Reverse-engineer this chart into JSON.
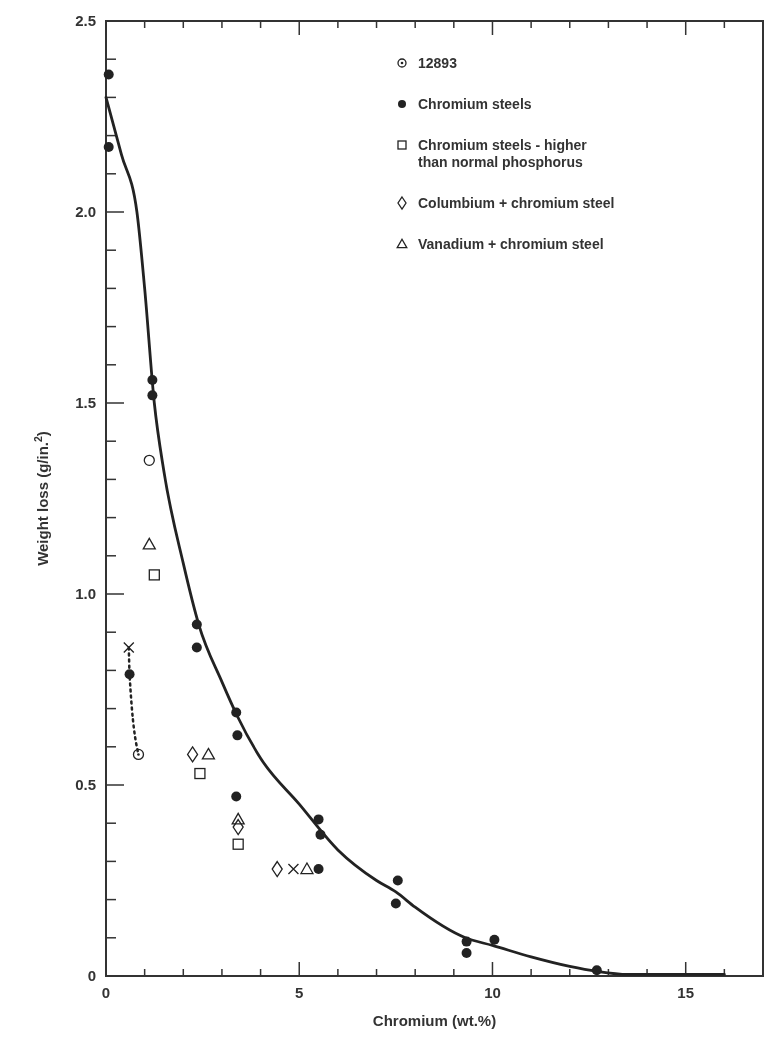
{
  "chart_data": {
    "type": "scatter",
    "xlabel": "Chromium (wt.%)",
    "ylabel": "Weight loss (g/in.$^{2}$)",
    "xlim": [
      0,
      17
    ],
    "ylim": [
      0,
      2.5
    ],
    "xticks": [
      0,
      {
        "value": 1,
        "label": null
      },
      {
        "value": 2,
        "label": null
      },
      {
        "value": 3,
        "label": null
      },
      {
        "value": 4,
        "label": null
      },
      5,
      {
        "value": 6,
        "label": null
      },
      {
        "value": 7,
        "label": null
      },
      {
        "value": 8,
        "label": null
      },
      {
        "value": 9,
        "label": null
      },
      10,
      {
        "value": 11,
        "label": null
      },
      {
        "value": 12,
        "label": null
      },
      {
        "value": 13,
        "label": null
      },
      {
        "value": 14,
        "label": null
      },
      15,
      {
        "value": 16,
        "label": null
      }
    ],
    "yticks": [
      {
        "value": 0,
        "label": "0"
      },
      {
        "value": 0.1,
        "label": null
      },
      {
        "value": 0.2,
        "label": null
      },
      {
        "value": 0.3,
        "label": null
      },
      {
        "value": 0.4,
        "label": null
      },
      0.5,
      {
        "value": 0.6,
        "label": null
      },
      {
        "value": 0.7,
        "label": null
      },
      {
        "value": 0.8,
        "label": null
      },
      {
        "value": 0.9,
        "label": null
      },
      {
        "value": 1,
        "label": "1.0"
      },
      {
        "value": 1.1,
        "label": null
      },
      {
        "value": 1.2,
        "label": null
      },
      {
        "value": 1.3,
        "label": null
      },
      {
        "value": 1.4,
        "label": null
      },
      1.5,
      {
        "value": 1.6,
        "label": null
      },
      {
        "value": 1.7,
        "label": null
      },
      {
        "value": 1.8,
        "label": null
      },
      {
        "value": 1.9,
        "label": null
      },
      {
        "value": 2,
        "label": "2.0"
      },
      {
        "value": 2.1,
        "label": null
      },
      {
        "value": 2.2,
        "label": null
      },
      {
        "value": 2.3,
        "label": null
      },
      {
        "value": 2.4,
        "label": null
      },
      2.5
    ],
    "grid": false,
    "legend": "top right",
    "series": [
      {
        "type": "line",
        "color": "#222222",
        "marker": "none",
        "line_style": "solid",
        "x": [
          0,
          0.4,
          0.8,
          1.0,
          1.25,
          1.5,
          2,
          2.4,
          3,
          3.4,
          4,
          5,
          6,
          7,
          7.5,
          8,
          9.3,
          10,
          11,
          12,
          12.7,
          13.5,
          16
        ],
        "values": [
          2.3,
          2.15,
          2.0,
          1.8,
          1.5,
          1.32,
          1.08,
          0.92,
          0.77,
          0.68,
          0.57,
          0.45,
          0.33,
          0.25,
          0.22,
          0.18,
          0.1,
          0.08,
          0.05,
          0.025,
          0.012,
          0.004,
          0.004
        ]
      },
      {
        "type": "line",
        "color": "#222222",
        "marker": "none",
        "line_style": "dotted",
        "x": [
          0.59,
          0.61,
          0.84
        ],
        "values": [
          0.86,
          0.79,
          0.58
        ]
      },
      {
        "color": "#222222",
        "marker": "cross",
        "x": [
          0.59,
          4.85
        ],
        "values": [
          0.86,
          0.28
        ]
      },
      {
        "name": "12893",
        "color": "#222222",
        "marker": "circle-dot",
        "x": [
          0.84
        ],
        "values": [
          0.58
        ]
      },
      {
        "color": "#222222",
        "marker": "circle-open",
        "x": [
          1.12
        ],
        "values": [
          1.35
        ]
      },
      {
        "name": "Chromium steels",
        "color": "#222222",
        "marker": "circle",
        "x": [
          0.07,
          0.07,
          1.2,
          1.2,
          2.35,
          2.35,
          3.37,
          3.4,
          3.37,
          0.61,
          5.5,
          5.55,
          5.5,
          7.55,
          7.5,
          9.33,
          9.33,
          10.05,
          12.7
        ],
        "values": [
          2.36,
          2.17,
          1.56,
          1.52,
          0.92,
          0.86,
          0.69,
          0.63,
          0.47,
          0.79,
          0.41,
          0.37,
          0.28,
          0.25,
          0.19,
          0.09,
          0.06,
          0.095,
          0.015
        ]
      },
      {
        "name": "Chromium steels - higher than normal phosphorus",
        "color": "#222222",
        "marker": "square",
        "x": [
          1.25,
          2.43,
          3.42
        ],
        "values": [
          1.05,
          0.53,
          0.345
        ]
      },
      {
        "name": "Columbium + chromium steel",
        "color": "#222222",
        "marker": "diamond",
        "x": [
          2.24,
          3.42,
          4.43
        ],
        "values": [
          0.58,
          0.39,
          0.28
        ]
      },
      {
        "name": "Vanadium + chromium steel",
        "color": "#222222",
        "marker": "triangle",
        "x": [
          1.12,
          2.65,
          3.42,
          5.2
        ],
        "values": [
          1.13,
          0.58,
          0.41,
          0.28
        ]
      }
    ]
  }
}
